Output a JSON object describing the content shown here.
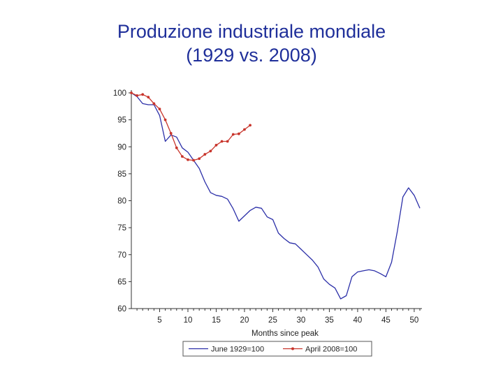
{
  "title": {
    "line1": "Produzione industriale mondiale",
    "line2": "(1929 vs. 2008)"
  },
  "chart_data": {
    "type": "line",
    "xlabel": "Months since peak",
    "ylabel": "",
    "xlim": [
      0,
      51
    ],
    "ylim": [
      60,
      100
    ],
    "xticks": [
      5,
      10,
      15,
      20,
      25,
      30,
      35,
      40,
      45,
      50
    ],
    "yticks": [
      60,
      65,
      70,
      75,
      80,
      85,
      90,
      95,
      100
    ],
    "grid": false,
    "legend_position": "bottom",
    "series": [
      {
        "name": "June 1929=100",
        "color": "#2b2fa8",
        "marker": "none",
        "x": [
          0,
          1,
          2,
          3,
          4,
          5,
          6,
          7,
          8,
          9,
          10,
          11,
          12,
          13,
          14,
          15,
          16,
          17,
          18,
          19,
          20,
          21,
          22,
          23,
          24,
          25,
          26,
          27,
          28,
          29,
          30,
          31,
          32,
          33,
          34,
          35,
          36,
          37,
          38,
          39,
          40,
          41,
          42,
          43,
          44,
          45,
          46,
          47,
          48,
          49,
          50,
          51
        ],
        "y": [
          100,
          99.3,
          98,
          97.8,
          97.8,
          95.8,
          91,
          92.2,
          91.8,
          89.8,
          89,
          87.5,
          86,
          83.5,
          81.5,
          81,
          80.8,
          80.3,
          78.5,
          76.2,
          77.2,
          78.2,
          78.8,
          78.6,
          77,
          76.5,
          74,
          73,
          72.2,
          72,
          71,
          70,
          69,
          67.7,
          65.5,
          64.5,
          63.8,
          61.8,
          62.4,
          65.9,
          66.8,
          67,
          67.2,
          67,
          66.5,
          65.9,
          68.6,
          74.2,
          80.7,
          82.4,
          81,
          78.6
        ]
      },
      {
        "name": "April 2008=100",
        "color": "#c8342b",
        "marker": "circle",
        "x": [
          0,
          1,
          2,
          3,
          4,
          5,
          6,
          7,
          8,
          9,
          10,
          11,
          12,
          13,
          14,
          15,
          16,
          17,
          18,
          19,
          20,
          21
        ],
        "y": [
          100,
          99.5,
          99.7,
          99.2,
          98,
          97,
          95,
          92.5,
          89.8,
          88.2,
          87.6,
          87.5,
          87.8,
          88.6,
          89.2,
          90.3,
          91,
          91,
          92.3,
          92.4,
          93.2,
          94
        ]
      }
    ]
  }
}
